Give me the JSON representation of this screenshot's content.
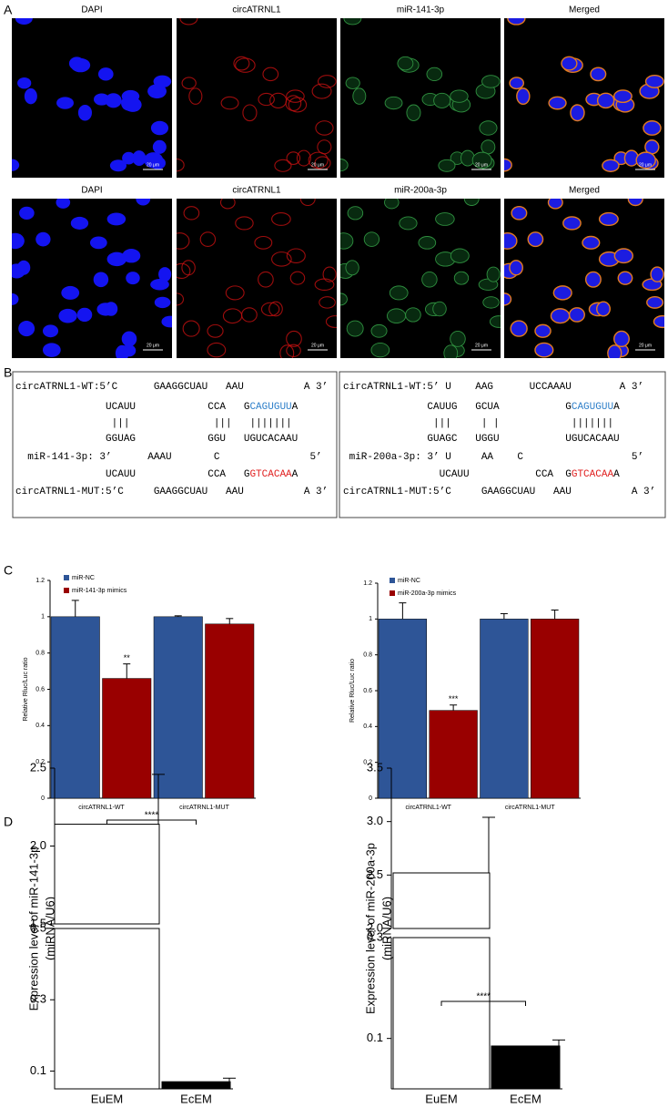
{
  "panel_labels": [
    "A",
    "B",
    "C",
    "D"
  ],
  "microscopy": {
    "rows": [
      {
        "labels": [
          "DAPI",
          "circATRNL1",
          "miR-141-3p",
          "Merged"
        ]
      },
      {
        "labels": [
          "DAPI",
          "circATRNL1",
          "miR-200a-3p",
          "Merged"
        ]
      }
    ],
    "scale_bar": "20 μm"
  },
  "sequences": {
    "boxes": [
      {
        "lines": [
          {
            "segments": [
              {
                "text": "circATRNL1-WT:5’C      GAAGGCUAU   AAU          A 3’"
              }
            ]
          },
          {
            "segments": [
              {
                "text": "               UCAUU            CCA   G"
              },
              {
                "text": "CAGUGUU",
                "color": "#2e7fc9"
              },
              {
                "text": "A"
              }
            ]
          },
          {
            "segments": [
              {
                "text": "                |||              |||   |||||||"
              }
            ]
          },
          {
            "segments": [
              {
                "text": "               GGUAG            GGU   UGUCACAAU"
              }
            ]
          },
          {
            "segments": [
              {
                "text": "  miR-141-3p: 3’      AAAU       C               5’"
              }
            ]
          },
          {
            "segments": [
              {
                "text": "               UCAUU            CCA   G"
              },
              {
                "text": "GTCACAA",
                "color": "#e02020"
              },
              {
                "text": "A"
              }
            ]
          },
          {
            "segments": [
              {
                "text": "circATRNL1-MUT:5’C     GAAGGCUAU   AAU          A 3’"
              }
            ]
          }
        ]
      },
      {
        "lines": [
          {
            "segments": [
              {
                "text": "circATRNL1-WT:5’ U    AAG      UCCAAAU        A 3’"
              }
            ]
          },
          {
            "segments": [
              {
                "text": "              CAUUG   GCUA           G"
              },
              {
                "text": "CAGUGUU",
                "color": "#2e7fc9"
              },
              {
                "text": "A"
              }
            ]
          },
          {
            "segments": [
              {
                "text": "               |||     | |            |||||||"
              }
            ]
          },
          {
            "segments": [
              {
                "text": "              GUAGC   UGGU           UGUCACAAU"
              }
            ]
          },
          {
            "segments": [
              {
                "text": " miR-200a-3p: 3’ U     AA    C                  5’"
              }
            ]
          },
          {
            "segments": [
              {
                "text": "                UCAUU           CCA  G"
              },
              {
                "text": "GTCACAA",
                "color": "#e02020"
              },
              {
                "text": "A"
              }
            ]
          },
          {
            "segments": [
              {
                "text": "circATRNL1-MUT:5’C     GAAGGCUAU   AAU          A 3’"
              }
            ]
          }
        ]
      }
    ]
  },
  "chart_data": [
    {
      "type": "bar",
      "y_label": "Relative Rluc/Luc ratio",
      "categories": [
        "circATRNL1-WT",
        "circATRNL1-MUT"
      ],
      "series": [
        {
          "name": "miR-NC",
          "color": "#2e5597",
          "values": [
            1,
            1
          ],
          "errors": [
            0.09,
            0.005
          ]
        },
        {
          "name": "miR-141-3p mimics",
          "color": "#990000",
          "values": [
            0.66,
            0.96
          ],
          "errors": [
            0.08,
            0.03
          ],
          "significance": [
            "**",
            null
          ]
        }
      ],
      "ylim": [
        0,
        1.2
      ],
      "yticks": [
        0,
        0.2,
        0.4,
        0.6,
        0.8,
        1,
        1.2
      ]
    },
    {
      "type": "bar",
      "y_label": "Relative Rluc/Luc ratio",
      "categories": [
        "circATRNL1-WT",
        "circATRNL1-MUT"
      ],
      "series": [
        {
          "name": "miR-NC",
          "color": "#2e5597",
          "values": [
            1,
            1
          ],
          "errors": [
            0.09,
            0.03
          ]
        },
        {
          "name": "miR-200a-3p mimics",
          "color": "#990000",
          "values": [
            0.49,
            1.0
          ],
          "errors": [
            0.03,
            0.05
          ],
          "significance": [
            "***",
            null
          ]
        }
      ],
      "ylim": [
        0,
        1.2
      ],
      "yticks": [
        0,
        0.2,
        0.4,
        0.6,
        0.8,
        1,
        1.2
      ]
    },
    {
      "type": "broken_bar",
      "y_label": [
        "Expression level of miR-141-3p",
        "(miRNA/U6)"
      ],
      "categories": [
        "EuEM",
        "EcEM"
      ],
      "values": [
        2.14,
        0.07
      ],
      "errors": [
        0.32,
        0.01
      ],
      "colors": [
        "#ffffff",
        "#000000"
      ],
      "significance": "****",
      "segments": [
        {
          "ylim": [
            0.05,
            0.5
          ],
          "yticks": [
            0.1,
            0.3,
            0.5
          ]
        },
        {
          "ylim": [
            1.5,
            2.5
          ],
          "yticks": [
            1.5,
            {
              "value": 2,
              "label": "2.0"
            },
            2.5
          ]
        }
      ]
    },
    {
      "type": "broken_bar",
      "y_label": [
        "Expression level of miR-200a-3p",
        "(miRNA/U6)"
      ],
      "categories": [
        "EuEM",
        "EcEM"
      ],
      "values": [
        2.52,
        0.085
      ],
      "errors": [
        0.52,
        0.012
      ],
      "colors": [
        "#ffffff",
        "#000000"
      ],
      "significance": "****",
      "segments": [
        {
          "ylim": [
            0,
            0.3
          ],
          "yticks": [
            0.1,
            0.3
          ]
        },
        {
          "ylim": [
            2,
            3.5
          ],
          "yticks": [
            {
              "value": 2,
              "label": "2.0"
            },
            2.5,
            {
              "value": 3,
              "label": "3.0"
            },
            3.5
          ]
        }
      ]
    }
  ]
}
